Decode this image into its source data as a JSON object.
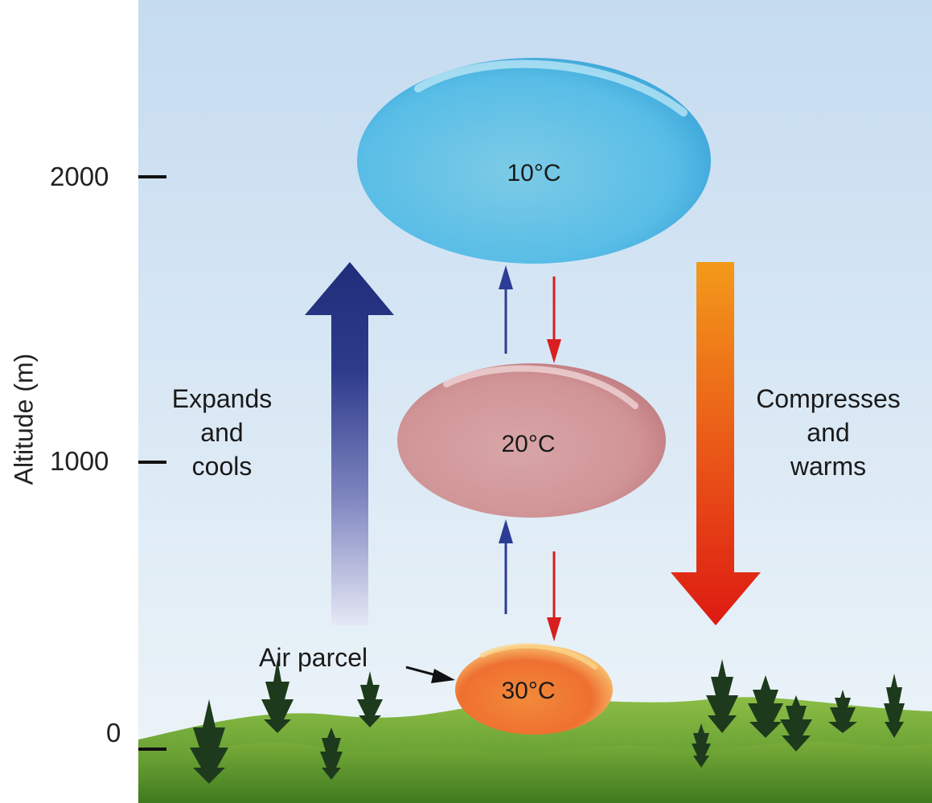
{
  "axis": {
    "title": "Altitude (m)",
    "ticks": [
      "2000",
      "1000",
      "0"
    ]
  },
  "parcels": [
    {
      "temp": "10°C"
    },
    {
      "temp": "20°C"
    },
    {
      "temp": "30°C"
    }
  ],
  "left_arrow_text": [
    "Expands",
    "and",
    "cools"
  ],
  "right_arrow_text": [
    "Compresses",
    "and",
    "warms"
  ],
  "parcel_label": "Air parcel",
  "colors": {
    "sky_top": "#c5dbf0",
    "sky_bottom": "#eaf3f8",
    "rise_arrow": "#1f2d7a",
    "sink_arrow_top": "#f39a1a",
    "sink_arrow_bottom": "#dd1a12",
    "cold_parcel": "#5cc0e8",
    "mid_parcel": "#d49a9c",
    "warm_parcel": "#f07a35",
    "ground": "#5f9a2c"
  }
}
